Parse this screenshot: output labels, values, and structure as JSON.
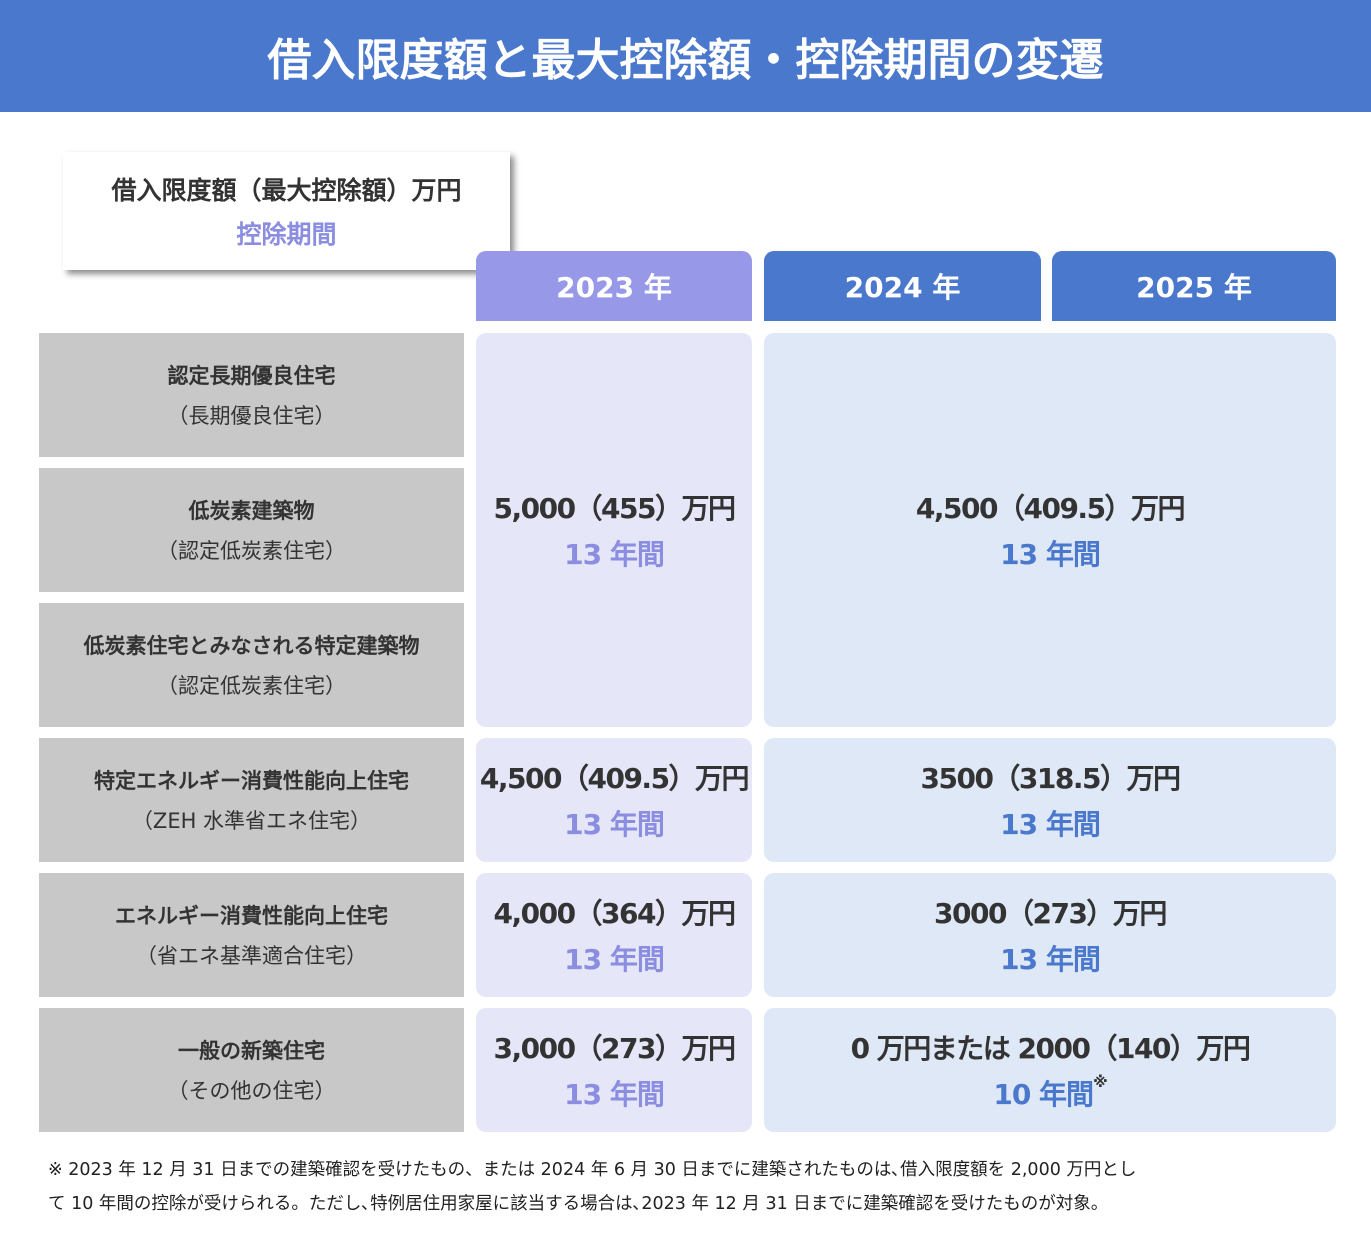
{
  "header": {
    "title": "借入限度額と最大控除額・控除期間の変遷"
  },
  "legend": {
    "amount_label": "借入限度額（最大控除額）万円",
    "period_label": "控除期間"
  },
  "columns": [
    "2023 年",
    "2024 年",
    "2025 年"
  ],
  "groups": [
    {
      "rows": [
        {
          "name": "認定長期優良住宅",
          "note": "（長期優良住宅）"
        },
        {
          "name": "低炭素建築物",
          "note": "（認定低炭素住宅）"
        },
        {
          "name": "低炭素住宅とみなされる特定建築物",
          "note": "（認定低炭素住宅）"
        }
      ],
      "col_2023": {
        "amount": "5,000（455）万円",
        "period": "13 年間"
      },
      "col_2024_2025": {
        "amount": "4,500（409.5）万円",
        "period": "13 年間"
      }
    },
    {
      "rows": [
        {
          "name": "特定エネルギー消費性能向上住宅",
          "note": "（ZEH 水準省エネ住宅）"
        }
      ],
      "col_2023": {
        "amount": "4,500（409.5）万円",
        "period": "13 年間"
      },
      "col_2024_2025": {
        "amount": "3500（318.5）万円",
        "period": "13 年間"
      }
    },
    {
      "rows": [
        {
          "name": "エネルギー消費性能向上住宅",
          "note": "（省エネ基準適合住宅）"
        }
      ],
      "col_2023": {
        "amount": "4,000（364）万円",
        "period": "13 年間"
      },
      "col_2024_2025": {
        "amount": "3000（273）万円",
        "period": "13 年間"
      }
    },
    {
      "rows": [
        {
          "name": "一般の新築住宅",
          "note": "（その他の住宅）"
        }
      ],
      "col_2023": {
        "amount": "3,000（273）万円",
        "period": "13 年間"
      },
      "col_2024_2025": {
        "amount": "0 万円または 2000（140）万円",
        "period": "10 年間",
        "mark": "※"
      }
    }
  ],
  "footnote": [
    "※ 2023 年 12 月 31 日までの建築確認を受けたもの、または 2024 年 6 月 30 日までに建築されたものは､借入限度額を 2,000 万円とし",
    "て 10 年間の控除が受けられる。ただし､特例居住用家屋に該当する場合は､2023 年 12 月 31 日までに建築確認を受けたものが対象。"
  ]
}
